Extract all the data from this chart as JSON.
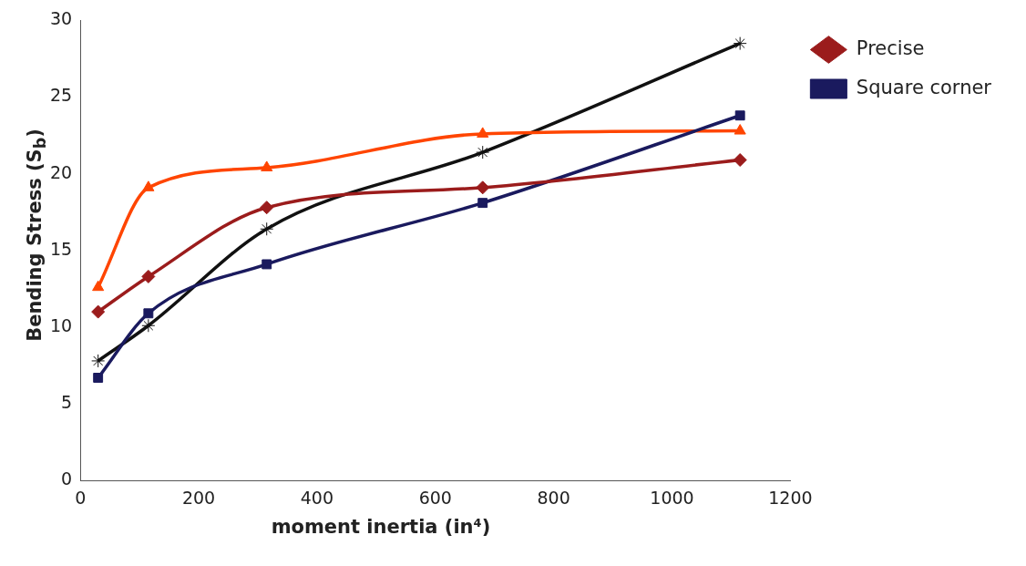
{
  "chart_data": {
    "type": "line",
    "xlabel": "moment inertia (in⁴)",
    "ylabel": "Bending Stress (S$_{b}$)",
    "x": [
      30,
      115,
      315,
      680,
      1115
    ],
    "series": [
      {
        "name": "Precise",
        "color": "#9b1c1c",
        "marker": "diamond",
        "values": [
          11.0,
          13.3,
          17.8,
          19.1,
          20.9
        ]
      },
      {
        "name": "Square corner",
        "color": "#1a1a5e",
        "marker": "square",
        "values": [
          6.7,
          10.9,
          14.1,
          18.1,
          23.8
        ]
      },
      {
        "color": "#ff4500",
        "marker": "triangle",
        "values": [
          12.6,
          19.1,
          20.4,
          22.6,
          22.8
        ]
      },
      {
        "color": "#111111",
        "marker": "cross",
        "values": [
          7.8,
          10.1,
          16.4,
          21.4,
          28.5
        ]
      }
    ],
    "xlim": [
      0,
      1200
    ],
    "xticks": [
      0,
      200,
      400,
      600,
      800,
      1000,
      1200
    ],
    "ylim": [
      0,
      30
    ],
    "yticks": [
      0,
      5,
      10,
      15,
      20,
      25,
      30
    ],
    "grid": false,
    "legend": "right",
    "line_style": "solid"
  }
}
